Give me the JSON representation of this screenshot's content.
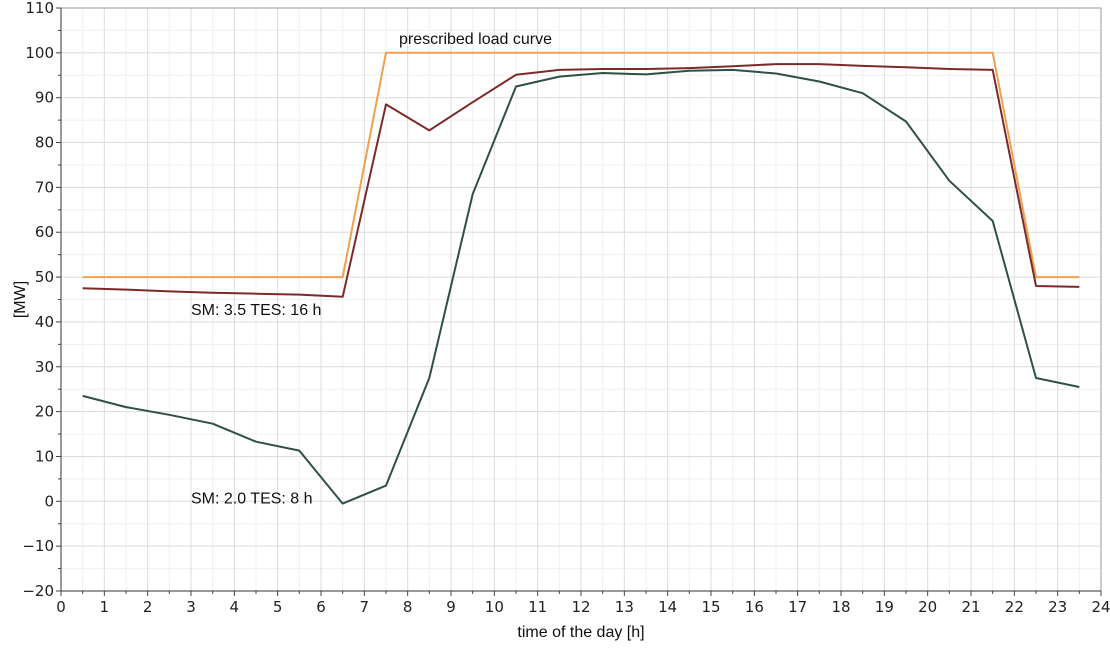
{
  "chart_data": {
    "type": "line",
    "xlabel": "time of the day [h]",
    "ylabel": "[MW]",
    "xlim": [
      0,
      24
    ],
    "ylim": [
      -20,
      110
    ],
    "x_ticks": [
      0,
      1,
      2,
      3,
      4,
      5,
      6,
      7,
      8,
      9,
      10,
      11,
      12,
      13,
      14,
      15,
      16,
      17,
      18,
      19,
      20,
      21,
      22,
      23,
      24
    ],
    "y_ticks": [
      -20,
      -10,
      0,
      10,
      20,
      30,
      40,
      50,
      60,
      70,
      80,
      90,
      100,
      110
    ],
    "grid": true,
    "series": [
      {
        "color": "#f0a050",
        "x": [
          0.5,
          6.5,
          7.5,
          21.5,
          22.5,
          23.5
        ],
        "y": [
          50,
          50,
          100,
          100,
          50,
          50
        ]
      },
      {
        "color": "#7b2a2a",
        "x": [
          0.5,
          1.5,
          2.5,
          3.5,
          4.5,
          5.5,
          6.5,
          7.5,
          8.5,
          9.5,
          10.5,
          11.5,
          12.5,
          13.5,
          14.5,
          15.5,
          16.5,
          17.5,
          18.5,
          19.5,
          20.5,
          21.5,
          22.5,
          23.5
        ],
        "y": [
          47.5,
          47.2,
          46.8,
          46.5,
          46.3,
          46.1,
          45.6,
          88.5,
          82.7,
          89.0,
          95.1,
          96.2,
          96.4,
          96.4,
          96.6,
          97.0,
          97.5,
          97.5,
          97.1,
          96.8,
          96.4,
          96.2,
          48.0,
          47.8
        ]
      },
      {
        "color": "#2f4f4a",
        "x": [
          0.5,
          1.5,
          2.5,
          3.5,
          4.5,
          5.5,
          6.5,
          7.5,
          8.5,
          9.5,
          10.5,
          11.5,
          12.5,
          13.5,
          14.5,
          15.5,
          16.5,
          17.5,
          18.5,
          19.5,
          20.5,
          21.5,
          22.5,
          23.5
        ],
        "y": [
          23.5,
          21.0,
          19.3,
          17.3,
          13.3,
          11.3,
          -0.5,
          3.5,
          27.5,
          68.5,
          92.5,
          94.7,
          95.5,
          95.2,
          96.0,
          96.2,
          95.4,
          93.6,
          91.0,
          84.7,
          71.5,
          62.5,
          27.5,
          25.5
        ]
      }
    ],
    "annotations": [
      {
        "text": "prescribed load curve",
        "x": 7.8,
        "y": 102
      },
      {
        "text": "SM: 3.5 TES: 16 h",
        "x": 3.0,
        "y": 41.5
      },
      {
        "text": "SM: 2.0 TES: 8 h",
        "x": 3.0,
        "y": -0.5
      }
    ]
  }
}
